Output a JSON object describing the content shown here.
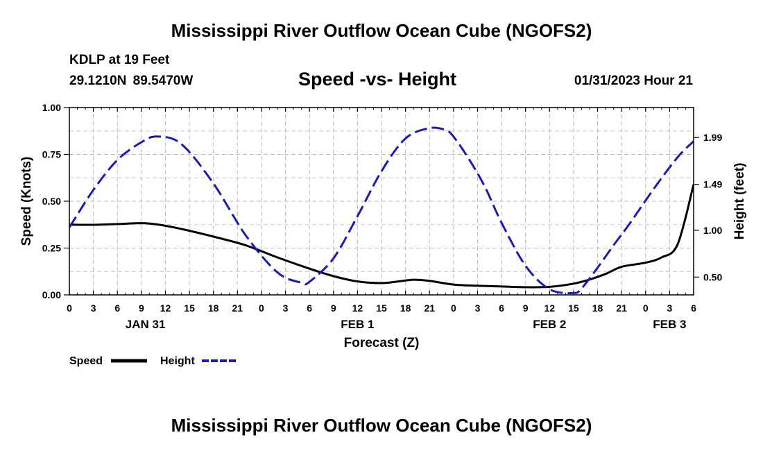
{
  "header": {
    "title": "Mississippi River Outflow Ocean Cube (NGOFS2)",
    "station": "KDLP at 19 Feet",
    "latlon": "29.1210N  89.5470W",
    "subtitle": "Speed -vs- Height",
    "datetime": "01/31/2023 Hour 21"
  },
  "footer": {
    "title": "Mississippi River Outflow Ocean Cube (NGOFS2)"
  },
  "chart_data": {
    "type": "line",
    "title": "Speed -vs- Height",
    "xlabel": "Forecast (Z)",
    "ylabel": "Speed (Knots)",
    "y2label": "Height (feet)",
    "x_range": [
      0,
      78
    ],
    "ylim": [
      0,
      1
    ],
    "y2lim": [
      0.31,
      2.31
    ],
    "x_ticks": [
      0,
      3,
      6,
      9,
      12,
      15,
      18,
      21,
      24,
      27,
      30,
      33,
      36,
      39,
      42,
      45,
      48,
      51,
      54,
      57,
      60,
      63,
      66,
      69,
      72,
      75,
      78
    ],
    "x_tick_labels": [
      "0",
      "3",
      "6",
      "9",
      "12",
      "15",
      "18",
      "21",
      "0",
      "3",
      "6",
      "9",
      "12",
      "15",
      "18",
      "21",
      "0",
      "3",
      "6",
      "9",
      "12",
      "15",
      "18",
      "21",
      "0",
      "3",
      "6"
    ],
    "date_labels": [
      {
        "label": "JAN 31",
        "x": 9.5
      },
      {
        "label": "FEB 1",
        "x": 36
      },
      {
        "label": "FEB 2",
        "x": 60
      },
      {
        "label": "FEB 3",
        "x": 75
      }
    ],
    "y_ticks": [
      0,
      0.25,
      0.5,
      0.75,
      1.0
    ],
    "y_tick_labels": [
      "0.00",
      "0.25",
      "0.50",
      "0.75",
      "1.00"
    ],
    "y2_ticks": [
      0.5,
      1.0,
      1.49,
      1.99
    ],
    "y2_tick_labels": [
      "0.50",
      "1.00",
      "1.49",
      "1.99"
    ],
    "grid": true,
    "legend_position": "bottom-left",
    "series": [
      {
        "name": "Speed",
        "axis": "left",
        "color": "#000000",
        "style": "solid",
        "x": [
          0,
          3,
          6,
          9,
          11,
          14,
          18,
          22,
          26,
          30,
          33,
          36,
          39,
          41,
          43,
          45,
          48,
          51,
          54,
          57,
          60,
          63,
          65,
          67,
          69,
          72,
          74,
          76,
          78
        ],
        "values": [
          0.375,
          0.374,
          0.378,
          0.383,
          0.376,
          0.352,
          0.311,
          0.265,
          0.2,
          0.14,
          0.1,
          0.072,
          0.063,
          0.071,
          0.081,
          0.075,
          0.055,
          0.049,
          0.045,
          0.041,
          0.043,
          0.06,
          0.082,
          0.112,
          0.15,
          0.172,
          0.2,
          0.27,
          0.59
        ]
      },
      {
        "name": "Height",
        "axis": "right",
        "color": "#1a1ab4",
        "style": "dashed",
        "x": [
          0,
          3,
          6,
          9,
          11,
          14,
          18,
          22,
          26,
          29,
          30,
          33,
          36,
          39,
          42,
          45,
          47,
          48,
          50,
          52,
          54,
          57,
          60,
          63,
          64,
          66,
          68,
          70,
          73,
          76,
          78
        ],
        "values": [
          1.03,
          1.43,
          1.75,
          1.94,
          2.0,
          1.92,
          1.5,
          0.95,
          0.55,
          0.44,
          0.45,
          0.7,
          1.15,
          1.63,
          1.98,
          2.09,
          2.07,
          2.0,
          1.75,
          1.45,
          1.08,
          0.62,
          0.37,
          0.33,
          0.38,
          0.6,
          0.84,
          1.07,
          1.44,
          1.78,
          1.95
        ]
      }
    ]
  }
}
